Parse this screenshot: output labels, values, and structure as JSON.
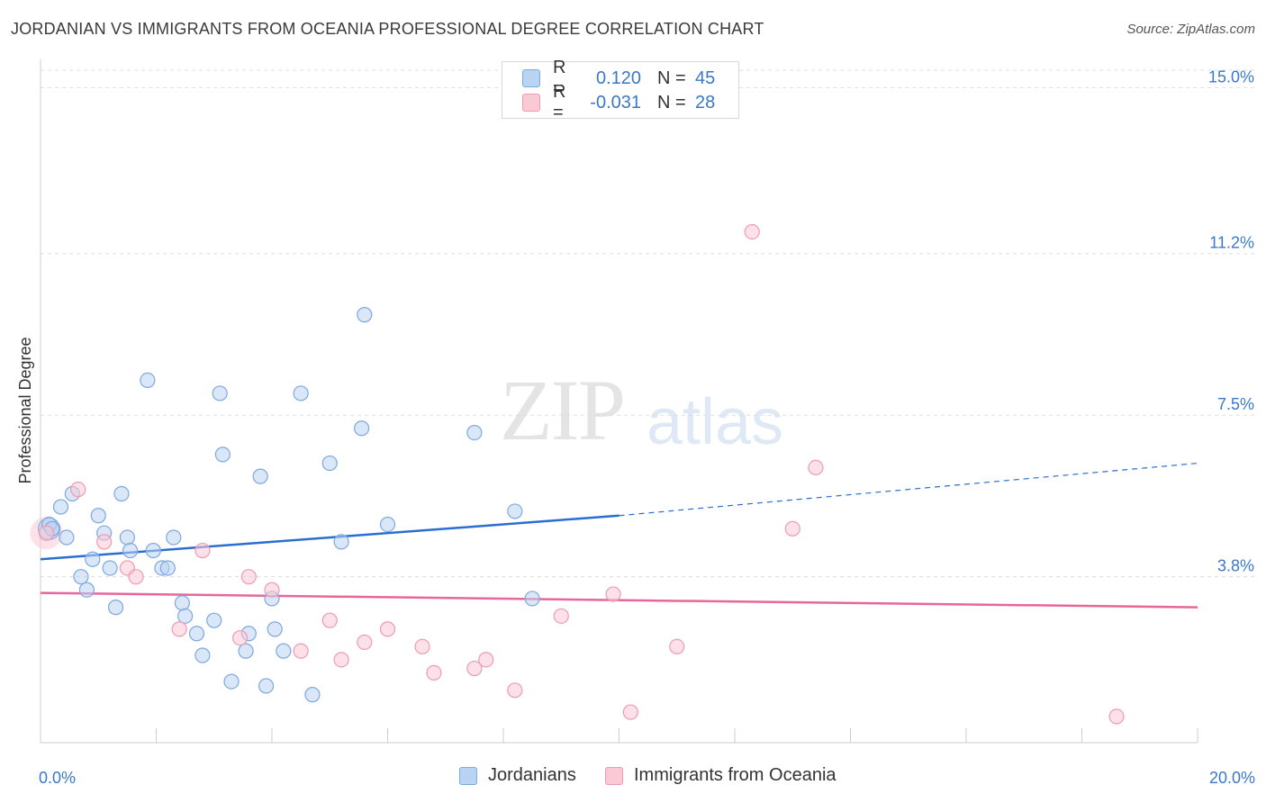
{
  "header": {
    "title": "JORDANIAN VS IMMIGRANTS FROM OCEANIA PROFESSIONAL DEGREE CORRELATION CHART",
    "source": "Source: ZipAtlas.com"
  },
  "watermark": {
    "zip": "ZIP",
    "atlas": "atlas"
  },
  "legend": {
    "rows": [
      {
        "r_label": "R =",
        "r_value": "0.120",
        "n_label": "N =",
        "n_value": "45"
      },
      {
        "r_label": "R =",
        "r_value": "-0.031",
        "n_label": "N =",
        "n_value": "28"
      }
    ]
  },
  "bottom_legend": {
    "series1": "Jordanians",
    "series2": "Immigrants from Oceania"
  },
  "colors": {
    "blue_fill": "#b9d3f3",
    "blue_stroke": "#7ea8e0",
    "blue_line": "#2a6fcf",
    "pink_fill": "#f9c9d6",
    "pink_stroke": "#ee9bb2",
    "pink_line": "#e8679a",
    "tick_text": "#3a78c9",
    "grid": "#dddddd"
  },
  "chart_data": {
    "type": "scatter",
    "title": "JORDANIAN VS IMMIGRANTS FROM OCEANIA PROFESSIONAL DEGREE CORRELATION CHART",
    "xlabel": "",
    "ylabel": "Professional Degree",
    "xlim": [
      0,
      20
    ],
    "ylim": [
      0,
      15.4
    ],
    "x_tick_labels": [
      {
        "value": 0,
        "label": "0.0%"
      },
      {
        "value": 20,
        "label": "20.0%"
      }
    ],
    "y_tick_labels": [
      {
        "value": 3.8,
        "label": "3.8%"
      },
      {
        "value": 7.5,
        "label": "7.5%"
      },
      {
        "value": 11.2,
        "label": "11.2%"
      },
      {
        "value": 15.0,
        "label": "15.0%"
      }
    ],
    "series": [
      {
        "name": "Jordanians",
        "R": 0.12,
        "N": 45,
        "points": [
          [
            0.15,
            5.0
          ],
          [
            0.35,
            5.4
          ],
          [
            0.45,
            4.7
          ],
          [
            0.55,
            5.7
          ],
          [
            0.7,
            3.8
          ],
          [
            0.8,
            3.5
          ],
          [
            0.9,
            4.2
          ],
          [
            1.0,
            5.2
          ],
          [
            1.1,
            4.8
          ],
          [
            1.2,
            4.0
          ],
          [
            1.3,
            3.1
          ],
          [
            1.4,
            5.7
          ],
          [
            1.5,
            4.7
          ],
          [
            1.55,
            4.4
          ],
          [
            1.85,
            8.3
          ],
          [
            1.95,
            4.4
          ],
          [
            2.1,
            4.0
          ],
          [
            2.2,
            4.0
          ],
          [
            2.3,
            4.7
          ],
          [
            2.45,
            3.2
          ],
          [
            2.5,
            2.9
          ],
          [
            2.7,
            2.5
          ],
          [
            2.8,
            2.0
          ],
          [
            3.0,
            2.8
          ],
          [
            3.1,
            8.0
          ],
          [
            3.15,
            6.6
          ],
          [
            3.3,
            1.4
          ],
          [
            3.55,
            2.1
          ],
          [
            3.6,
            2.5
          ],
          [
            3.8,
            6.1
          ],
          [
            3.9,
            1.3
          ],
          [
            4.0,
            3.3
          ],
          [
            4.05,
            2.6
          ],
          [
            4.2,
            2.1
          ],
          [
            4.5,
            8.0
          ],
          [
            4.7,
            1.1
          ],
          [
            5.0,
            6.4
          ],
          [
            5.2,
            4.6
          ],
          [
            5.55,
            7.2
          ],
          [
            5.6,
            9.8
          ],
          [
            6.0,
            5.0
          ],
          [
            7.5,
            7.1
          ],
          [
            8.2,
            5.3
          ],
          [
            8.5,
            3.3
          ],
          [
            0.2,
            4.9
          ]
        ]
      },
      {
        "name": "Immigrants from Oceania",
        "R": -0.031,
        "N": 28,
        "points": [
          [
            0.1,
            4.8
          ],
          [
            0.65,
            5.8
          ],
          [
            1.1,
            4.6
          ],
          [
            1.5,
            4.0
          ],
          [
            1.65,
            3.8
          ],
          [
            2.4,
            2.6
          ],
          [
            2.8,
            4.4
          ],
          [
            3.45,
            2.4
          ],
          [
            3.6,
            3.8
          ],
          [
            4.0,
            3.5
          ],
          [
            4.5,
            2.1
          ],
          [
            5.0,
            2.8
          ],
          [
            5.2,
            1.9
          ],
          [
            5.6,
            2.3
          ],
          [
            6.0,
            2.6
          ],
          [
            6.6,
            2.2
          ],
          [
            6.8,
            1.6
          ],
          [
            7.5,
            1.7
          ],
          [
            7.7,
            1.9
          ],
          [
            8.2,
            1.2
          ],
          [
            9.0,
            2.9
          ],
          [
            9.9,
            3.4
          ],
          [
            10.2,
            0.7
          ],
          [
            11.0,
            2.2
          ],
          [
            12.3,
            11.7
          ],
          [
            13.0,
            4.9
          ],
          [
            13.4,
            6.3
          ],
          [
            18.6,
            0.6
          ]
        ]
      }
    ],
    "trend_lines": [
      {
        "series": "Jordanians",
        "solid": [
          [
            0,
            4.2
          ],
          [
            10,
            5.2
          ]
        ],
        "dashed": [
          [
            10,
            5.2
          ],
          [
            20,
            6.4
          ]
        ]
      },
      {
        "series": "Immigrants from Oceania",
        "solid": [
          [
            0,
            3.43
          ],
          [
            20,
            3.1
          ]
        ]
      }
    ]
  }
}
